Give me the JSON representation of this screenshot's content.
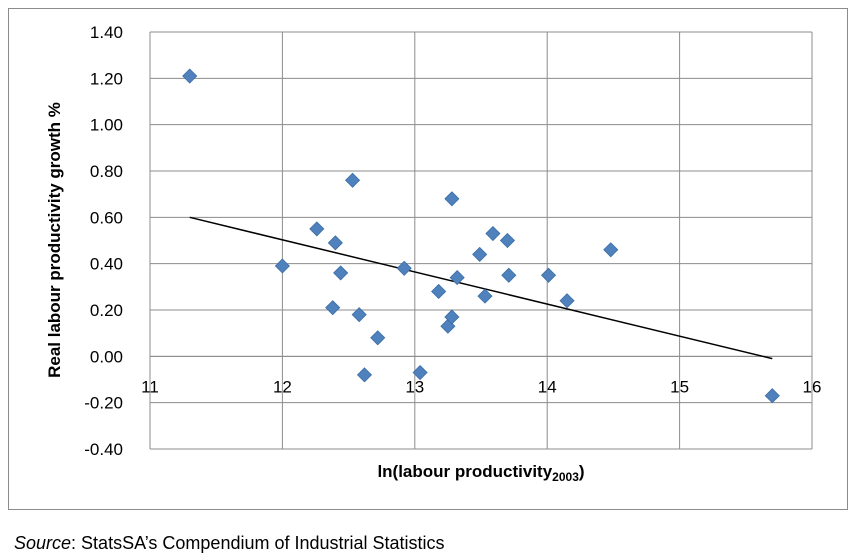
{
  "chart_data": {
    "type": "scatter",
    "title": "",
    "xlabel": "ln(labour productivity",
    "xlabel_subscript": "2003",
    "xlabel_close": ")",
    "ylabel": "Real labour productivity growth %",
    "xlim": [
      11,
      16
    ],
    "ylim": [
      -0.4,
      1.4
    ],
    "x_ticks": [
      "11",
      "12",
      "13",
      "14",
      "15",
      "16"
    ],
    "y_ticks": [
      "1.40",
      "1.20",
      "1.00",
      "0.80",
      "0.60",
      "0.40",
      "0.20",
      "0.00",
      "-0.20",
      "-0.40"
    ],
    "grid": true,
    "marker_color": "#4f81bd",
    "trendline_color": "#000000",
    "points": [
      {
        "x": 11.3,
        "y": 1.21
      },
      {
        "x": 12.0,
        "y": 0.39
      },
      {
        "x": 12.26,
        "y": 0.55
      },
      {
        "x": 12.4,
        "y": 0.49
      },
      {
        "x": 12.44,
        "y": 0.36
      },
      {
        "x": 12.38,
        "y": 0.21
      },
      {
        "x": 12.53,
        "y": 0.76
      },
      {
        "x": 12.58,
        "y": 0.18
      },
      {
        "x": 12.62,
        "y": -0.08
      },
      {
        "x": 12.72,
        "y": 0.08
      },
      {
        "x": 12.92,
        "y": 0.38
      },
      {
        "x": 13.04,
        "y": -0.07
      },
      {
        "x": 13.18,
        "y": 0.28
      },
      {
        "x": 13.25,
        "y": 0.13
      },
      {
        "x": 13.28,
        "y": 0.17
      },
      {
        "x": 13.28,
        "y": 0.68
      },
      {
        "x": 13.32,
        "y": 0.34
      },
      {
        "x": 13.49,
        "y": 0.44
      },
      {
        "x": 13.53,
        "y": 0.26
      },
      {
        "x": 13.59,
        "y": 0.53
      },
      {
        "x": 13.7,
        "y": 0.5
      },
      {
        "x": 13.71,
        "y": 0.35
      },
      {
        "x": 14.01,
        "y": 0.35
      },
      {
        "x": 14.15,
        "y": 0.24
      },
      {
        "x": 14.48,
        "y": 0.46
      },
      {
        "x": 15.7,
        "y": -0.17
      }
    ],
    "trendline": {
      "x": [
        11.3,
        15.7
      ],
      "y": [
        0.6,
        -0.01
      ]
    }
  },
  "source": {
    "label": "Source",
    "text": ": StatsSA’s Compendium of Industrial Statistics"
  }
}
